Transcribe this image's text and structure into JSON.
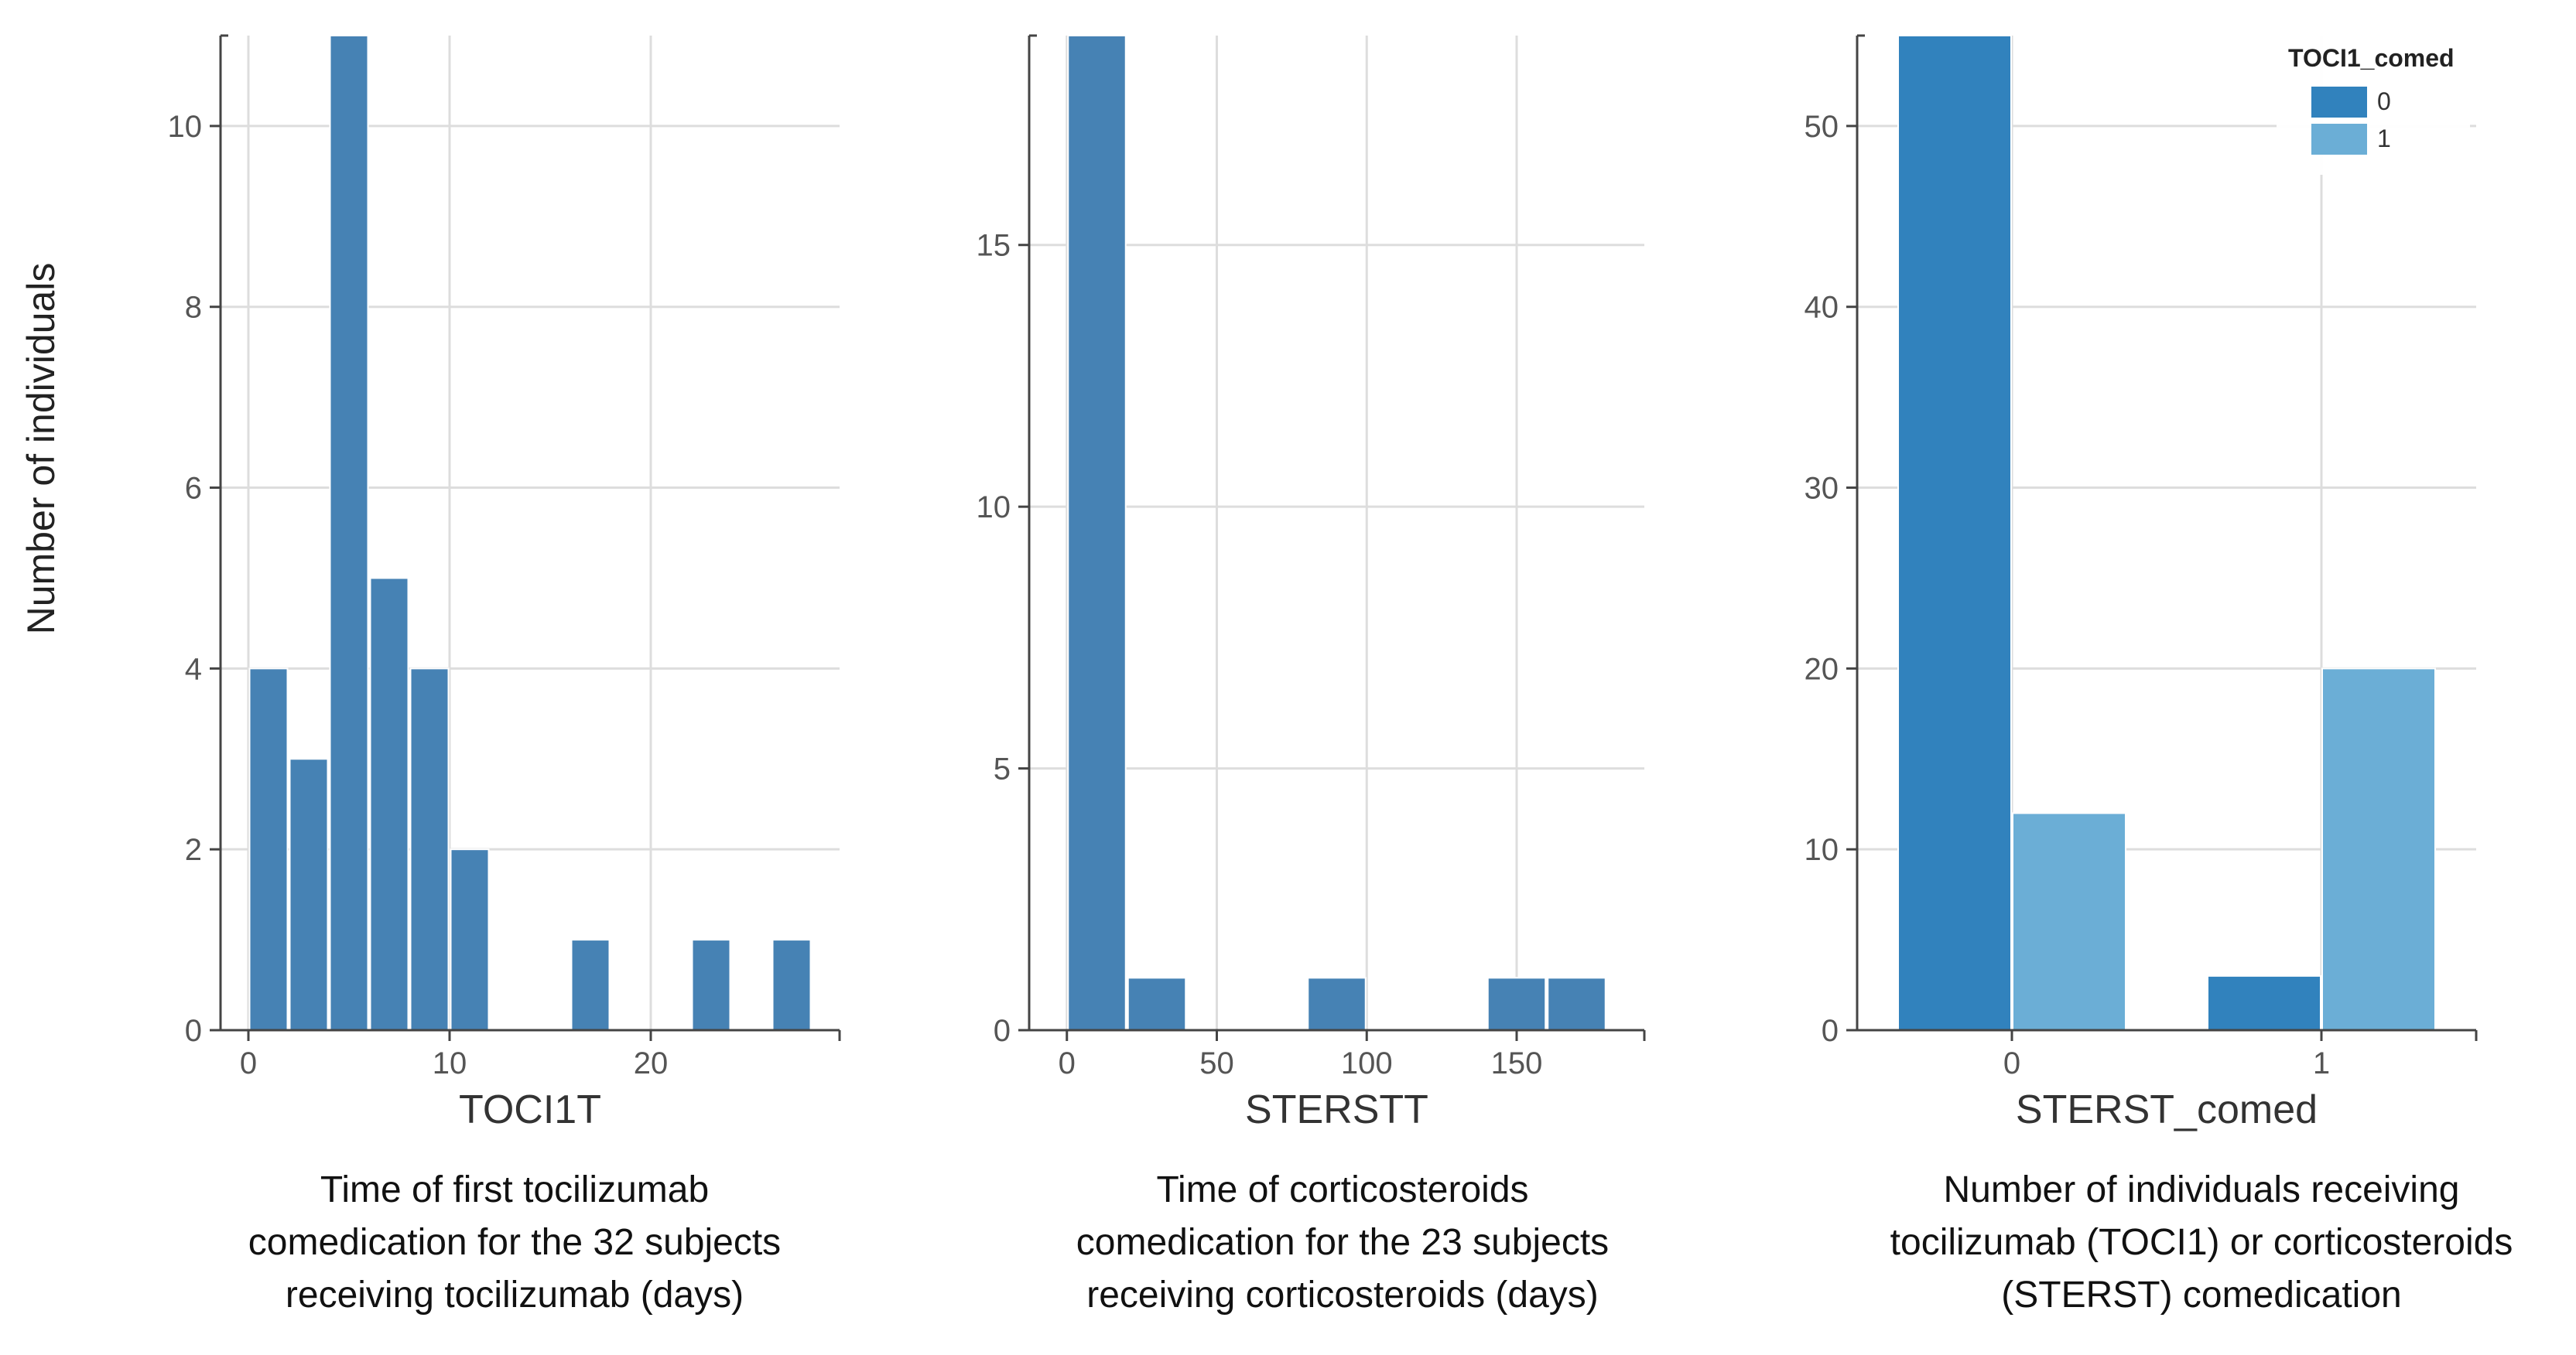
{
  "y_axis_title": "Number of individuals",
  "captions": [
    [
      "Time of first tocilizumab",
      "comedication for the 32 subjects",
      "receiving tocilizumab (days)"
    ],
    [
      "Time of corticosteroids",
      "comedication for the 23 subjects",
      "receiving corticosteroids (days)"
    ],
    [
      "Number of individuals receiving",
      "tocilizumab (TOCI1) or corticosteroids",
      "(STERST) comedication"
    ]
  ],
  "colors": {
    "bar": "#4682b4",
    "series_0": "#3182bd",
    "series_1": "#6baed6",
    "grid": "#dddddd",
    "axis": "#444444"
  },
  "chart_data": [
    {
      "type": "bar",
      "subtype": "histogram",
      "xlabel": "TOCI1T",
      "xlim": [
        -1,
        29
      ],
      "ylim": [
        0,
        11
      ],
      "xticks": [
        0,
        10,
        20
      ],
      "yticks": [
        0,
        2,
        4,
        6,
        8,
        10
      ],
      "grid": true,
      "bins": [
        {
          "x0": 0,
          "x1": 2,
          "count": 4
        },
        {
          "x0": 2,
          "x1": 4,
          "count": 3
        },
        {
          "x0": 4,
          "x1": 6,
          "count": 11
        },
        {
          "x0": 6,
          "x1": 8,
          "count": 5
        },
        {
          "x0": 8,
          "x1": 10,
          "count": 4
        },
        {
          "x0": 10,
          "x1": 12,
          "count": 2
        },
        {
          "x0": 16,
          "x1": 18,
          "count": 1
        },
        {
          "x0": 22,
          "x1": 24,
          "count": 1
        },
        {
          "x0": 26,
          "x1": 28,
          "count": 1
        }
      ]
    },
    {
      "type": "bar",
      "subtype": "histogram",
      "xlabel": "STERSTT",
      "xlim": [
        -10,
        190
      ],
      "ylim": [
        0,
        19
      ],
      "xticks": [
        0,
        50,
        100,
        150
      ],
      "yticks": [
        0,
        5,
        10,
        15
      ],
      "grid": true,
      "bins": [
        {
          "x0": 0,
          "x1": 20,
          "count": 19
        },
        {
          "x0": 20,
          "x1": 40,
          "count": 1
        },
        {
          "x0": 80,
          "x1": 100,
          "count": 1
        },
        {
          "x0": 140,
          "x1": 160,
          "count": 1
        },
        {
          "x0": 160,
          "x1": 180,
          "count": 1
        }
      ]
    },
    {
      "type": "bar",
      "subtype": "grouped",
      "xlabel": "STERST_comed",
      "categories": [
        "0",
        "1"
      ],
      "ylim": [
        0,
        55
      ],
      "yticks": [
        0,
        10,
        20,
        30,
        40,
        50
      ],
      "grid": true,
      "legend_title": "TOCI1_comed",
      "legend_position": "top-right",
      "series": [
        {
          "name": "0",
          "values": [
            55,
            3
          ]
        },
        {
          "name": "1",
          "values": [
            12,
            20
          ]
        }
      ]
    }
  ]
}
